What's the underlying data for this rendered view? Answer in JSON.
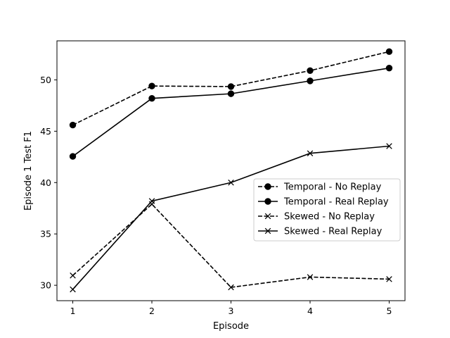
{
  "chart_data": {
    "type": "line",
    "title": "",
    "xlabel": "Episode",
    "ylabel": "Episode 1 Test F1",
    "x": [
      1,
      2,
      3,
      4,
      5
    ],
    "xticks": [
      "1",
      "2",
      "3",
      "4",
      "5"
    ],
    "yticks": [
      "30",
      "35",
      "40",
      "45",
      "50"
    ],
    "xlim": [
      0.8,
      5.2
    ],
    "ylim": [
      28.5,
      53.8
    ],
    "grid": false,
    "legend_position": "center-right",
    "series": [
      {
        "name": "Temporal - No Replay",
        "values": [
          45.6,
          49.4,
          49.35,
          50.9,
          52.75
        ],
        "marker": "circle",
        "linestyle": "dashed",
        "color": "#000000"
      },
      {
        "name": "Temporal - Real Replay",
        "values": [
          42.55,
          48.2,
          48.65,
          49.9,
          51.15
        ],
        "marker": "circle",
        "linestyle": "solid",
        "color": "#000000"
      },
      {
        "name": "Skewed - No Replay",
        "values": [
          30.95,
          37.9,
          29.8,
          30.8,
          30.6
        ],
        "marker": "x",
        "linestyle": "dashed",
        "color": "#000000"
      },
      {
        "name": "Skewed - Real Replay",
        "values": [
          29.6,
          38.2,
          40.0,
          42.85,
          43.55
        ],
        "marker": "x",
        "linestyle": "solid",
        "color": "#000000"
      }
    ]
  }
}
